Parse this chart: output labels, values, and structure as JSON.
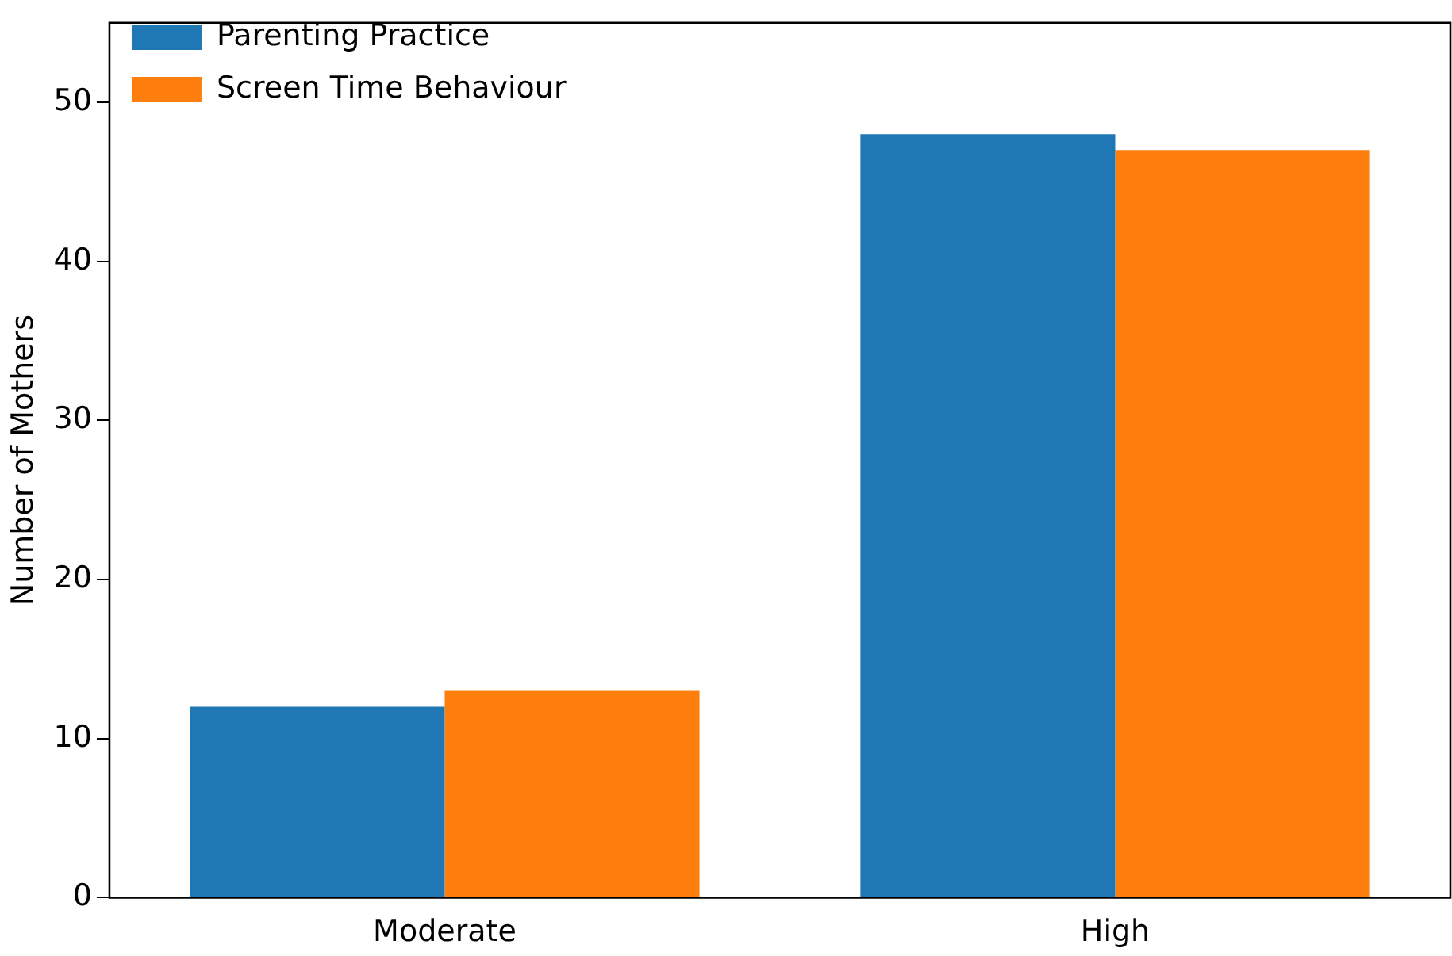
{
  "chart_data": {
    "type": "bar",
    "ylabel": "Number of Mothers",
    "categories": [
      "Moderate",
      "High"
    ],
    "series": [
      {
        "name": "Parenting Practice",
        "color": "#1f77b4",
        "values": [
          12,
          48
        ]
      },
      {
        "name": "Screen Time Behaviour",
        "color": "#ff7f0e",
        "values": [
          13,
          47
        ]
      }
    ],
    "ylim": [
      0,
      55
    ],
    "yticks": [
      0,
      10,
      20,
      30,
      40,
      50
    ],
    "grid": false,
    "legend": "top left"
  }
}
